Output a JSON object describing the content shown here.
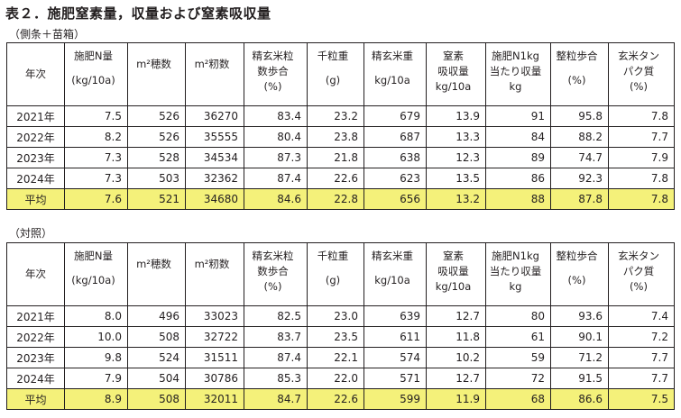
{
  "title": "表２．施肥窒素量，収量および窒素吸収量",
  "table1": {
    "caption": "（側条＋苗箱）",
    "rows": [
      {
        "year": "2021年",
        "n": "7.5",
        "ho": "526",
        "momi": "36270",
        "seigen_ratio": "83.4",
        "sen": "23.2",
        "seigen": "679",
        "kyushu": "13.9",
        "n1kg": "91",
        "seiryu": "95.8",
        "tanpaku": "7.8"
      },
      {
        "year": "2022年",
        "n": "8.2",
        "ho": "526",
        "momi": "35555",
        "seigen_ratio": "80.4",
        "sen": "23.8",
        "seigen": "687",
        "kyushu": "13.3",
        "n1kg": "84",
        "seiryu": "88.2",
        "tanpaku": "7.7"
      },
      {
        "year": "2023年",
        "n": "7.3",
        "ho": "528",
        "momi": "34534",
        "seigen_ratio": "87.3",
        "sen": "21.8",
        "seigen": "638",
        "kyushu": "12.3",
        "n1kg": "89",
        "seiryu": "74.7",
        "tanpaku": "7.9"
      },
      {
        "year": "2024年",
        "n": "7.3",
        "ho": "503",
        "momi": "32362",
        "seigen_ratio": "87.4",
        "sen": "22.6",
        "seigen": "623",
        "kyushu": "13.5",
        "n1kg": "86",
        "seiryu": "92.3",
        "tanpaku": "7.8"
      }
    ],
    "avg": {
      "year": "平均",
      "n": "7.6",
      "ho": "521",
      "momi": "34680",
      "seigen_ratio": "84.6",
      "sen": "22.8",
      "seigen": "656",
      "kyushu": "13.2",
      "n1kg": "88",
      "seiryu": "87.8",
      "tanpaku": "7.8"
    }
  },
  "table2": {
    "caption": "（対照）",
    "rows": [
      {
        "year": "2021年",
        "n": "8.0",
        "ho": "496",
        "momi": "33023",
        "seigen_ratio": "82.5",
        "sen": "23.0",
        "seigen": "639",
        "kyushu": "12.7",
        "n1kg": "80",
        "seiryu": "93.6",
        "tanpaku": "7.4"
      },
      {
        "year": "2022年",
        "n": "10.0",
        "ho": "508",
        "momi": "32722",
        "seigen_ratio": "83.7",
        "sen": "23.5",
        "seigen": "611",
        "kyushu": "11.8",
        "n1kg": "61",
        "seiryu": "90.1",
        "tanpaku": "7.2"
      },
      {
        "year": "2023年",
        "n": "9.8",
        "ho": "524",
        "momi": "31511",
        "seigen_ratio": "87.4",
        "sen": "22.1",
        "seigen": "574",
        "kyushu": "10.2",
        "n1kg": "59",
        "seiryu": "71.2",
        "tanpaku": "7.7"
      },
      {
        "year": "2024年",
        "n": "7.9",
        "ho": "504",
        "momi": "30786",
        "seigen_ratio": "85.3",
        "sen": "22.0",
        "seigen": "571",
        "kyushu": "12.7",
        "n1kg": "72",
        "seiryu": "91.5",
        "tanpaku": "7.7"
      }
    ],
    "avg": {
      "year": "平均",
      "n": "8.9",
      "ho": "508",
      "momi": "32011",
      "seigen_ratio": "84.7",
      "sen": "22.6",
      "seigen": "599",
      "kyushu": "11.9",
      "n1kg": "68",
      "seiryu": "86.6",
      "tanpaku": "7.5"
    }
  },
  "headers": {
    "year": "年次",
    "n_l1": "施肥N量",
    "n_unit": "(kg/10a)",
    "ho_l1": "m²穂数",
    "momi_l1": "m²籾数",
    "seigen_ratio_l1": "精玄米粒",
    "seigen_ratio_l2": "数歩合",
    "seigen_ratio_unit": "(%)",
    "sen_l1": "千粒重",
    "sen_unit": "(g)",
    "seigen_l1": "精玄米重",
    "seigen_unit": "kg/10a",
    "kyushu_l1": "窒素",
    "kyushu_l2": "吸収量",
    "kyushu_unit": "kg/10a",
    "n1kg_l1": "施肥N1kg",
    "n1kg_l2": "当たり収量",
    "n1kg_unit": "kg",
    "seiryu_l1": "整粒歩合",
    "seiryu_unit": "(%)",
    "tanpaku_l1": "玄米タン",
    "tanpaku_l2": "パク質",
    "tanpaku_unit": "(%)"
  },
  "colors": {
    "avg_row": "#f4f17a",
    "border": "#231f20"
  }
}
